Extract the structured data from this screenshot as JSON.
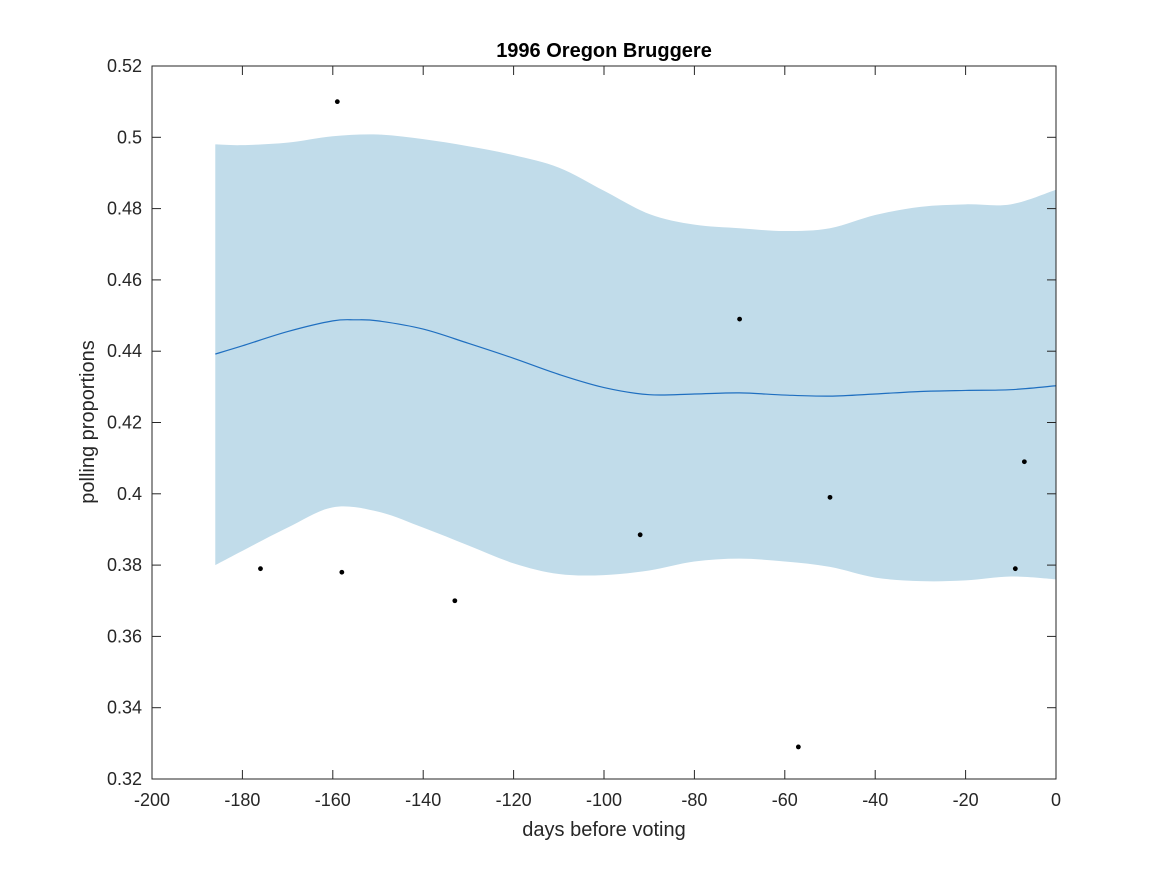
{
  "chart_data": {
    "type": "line",
    "title": "1996 Oregon Bruggere",
    "xlabel": "days before voting",
    "ylabel": "polling proportions",
    "xlim": [
      -200,
      0
    ],
    "ylim": [
      0.32,
      0.52
    ],
    "xticks": [
      -200,
      -180,
      -160,
      -140,
      -120,
      -100,
      -80,
      -60,
      -40,
      -20,
      0
    ],
    "yticks": [
      0.32,
      0.34,
      0.36,
      0.38,
      0.4,
      0.42,
      0.44,
      0.46,
      0.48,
      0.5,
      0.52
    ],
    "xtick_labels": [
      "-200",
      "-180",
      "-160",
      "-140",
      "-120",
      "-100",
      "-80",
      "-60",
      "-40",
      "-20",
      "0"
    ],
    "ytick_labels": [
      "0.32",
      "0.34",
      "0.36",
      "0.38",
      "0.4",
      "0.42",
      "0.44",
      "0.46",
      "0.48",
      "0.5",
      "0.52"
    ],
    "grid": false,
    "colors": {
      "band": "#c1dcea",
      "line": "#1f6fc0",
      "points": "#000000",
      "axes": "#262626"
    },
    "band": {
      "x": [
        -186,
        -180,
        -170,
        -160,
        -150,
        -140,
        -130,
        -120,
        -110,
        -100,
        -90,
        -80,
        -70,
        -60,
        -50,
        -40,
        -30,
        -20,
        -10,
        0
      ],
      "upper": [
        0.498,
        0.4978,
        0.4985,
        0.5003,
        0.5008,
        0.4995,
        0.4975,
        0.495,
        0.4915,
        0.485,
        0.4785,
        0.4755,
        0.4745,
        0.4737,
        0.4745,
        0.4782,
        0.4805,
        0.4812,
        0.4812,
        0.4853
      ],
      "lower": [
        0.38,
        0.384,
        0.3905,
        0.3962,
        0.395,
        0.3905,
        0.3855,
        0.3805,
        0.3775,
        0.3772,
        0.3785,
        0.381,
        0.3818,
        0.381,
        0.3795,
        0.3765,
        0.3755,
        0.3757,
        0.3768,
        0.376
      ]
    },
    "series": [
      {
        "type": "line",
        "x": [
          -186,
          -180,
          -170,
          -160,
          -155,
          -150,
          -140,
          -130,
          -120,
          -110,
          -100,
          -90,
          -80,
          -70,
          -60,
          -50,
          -40,
          -30,
          -20,
          -10,
          0
        ],
        "values": [
          0.4392,
          0.4415,
          0.4455,
          0.4485,
          0.4488,
          0.4485,
          0.4462,
          0.4422,
          0.438,
          0.4335,
          0.4298,
          0.4278,
          0.428,
          0.4283,
          0.4277,
          0.4274,
          0.428,
          0.4287,
          0.429,
          0.4292,
          0.4303
        ]
      },
      {
        "type": "scatter",
        "x": [
          -176,
          -159,
          -158,
          -133,
          -92,
          -70,
          -57,
          -50,
          -9,
          -7
        ],
        "values": [
          0.379,
          0.51,
          0.378,
          0.37,
          0.3885,
          0.449,
          0.329,
          0.399,
          0.379,
          0.409
        ]
      }
    ]
  }
}
